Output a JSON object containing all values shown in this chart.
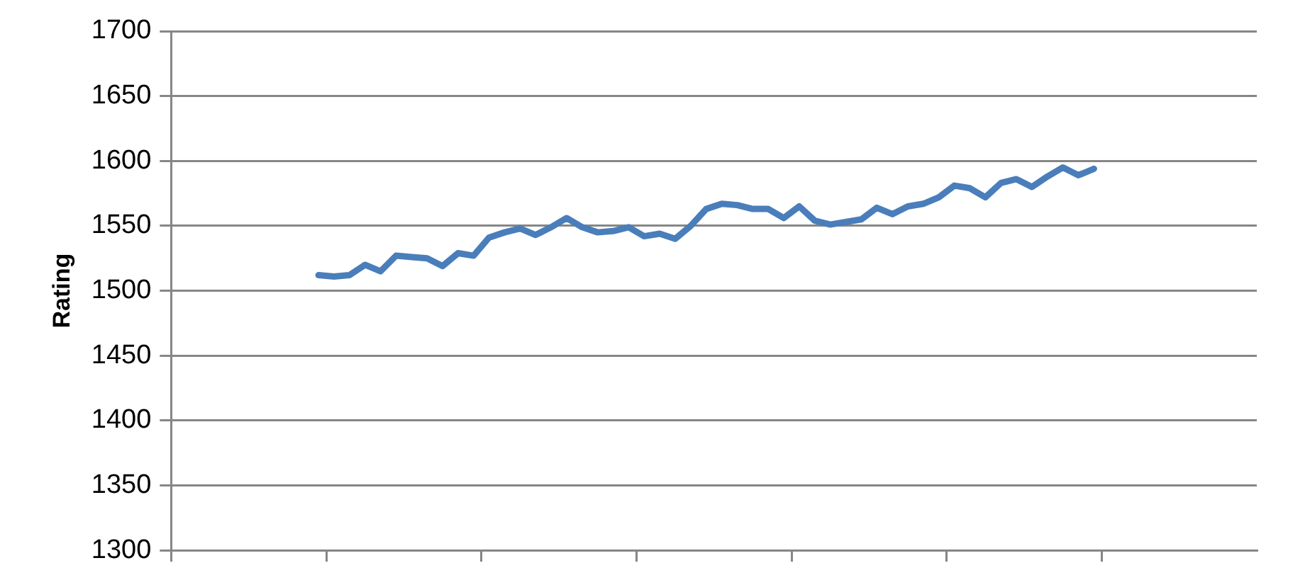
{
  "chart_data": {
    "type": "line",
    "ylabel": "Rating",
    "categories": [
      null,
      null,
      null,
      null,
      null,
      null,
      null,
      null,
      null,
      null,
      null,
      null,
      null,
      null,
      null,
      null,
      null,
      null,
      null,
      null,
      null,
      null,
      null,
      null,
      null,
      null,
      null,
      null,
      null,
      null,
      null,
      null,
      null,
      null,
      null,
      null,
      null,
      null,
      null,
      null,
      null,
      null,
      null,
      null,
      null,
      null,
      null,
      null,
      null,
      null,
      null,
      null,
      null,
      null,
      null,
      null,
      null,
      null,
      null,
      null,
      null,
      null,
      null,
      null,
      null,
      null,
      null,
      null,
      null,
      null
    ],
    "series": [
      {
        "color": "#4a7ebb",
        "values": [
          null,
          null,
          null,
          null,
          null,
          null,
          null,
          null,
          null,
          1512,
          1511,
          1512,
          1520,
          1515,
          1527,
          1526,
          1525,
          1519,
          1529,
          1527,
          1541,
          1545,
          1548,
          1543,
          1549,
          1556,
          1549,
          1545,
          1546,
          1549,
          1542,
          1544,
          1540,
          1550,
          1563,
          1567,
          1566,
          1563,
          1563,
          1556,
          1565,
          1554,
          1551,
          1553,
          1555,
          1564,
          1559,
          1565,
          1567,
          1572,
          1581,
          1579,
          1572,
          1583,
          1586,
          1580,
          1588,
          1595,
          1589,
          1594,
          null,
          null,
          null,
          null,
          null,
          null,
          null,
          null,
          null,
          null
        ]
      }
    ],
    "ylim": [
      1300,
      1700
    ],
    "yticks": [
      1300,
      1350,
      1400,
      1450,
      1500,
      1550,
      1600,
      1650,
      1700
    ],
    "grid": "y",
    "legend": false,
    "tick_labels": "y",
    "marker": "none",
    "line_style": "solid"
  }
}
